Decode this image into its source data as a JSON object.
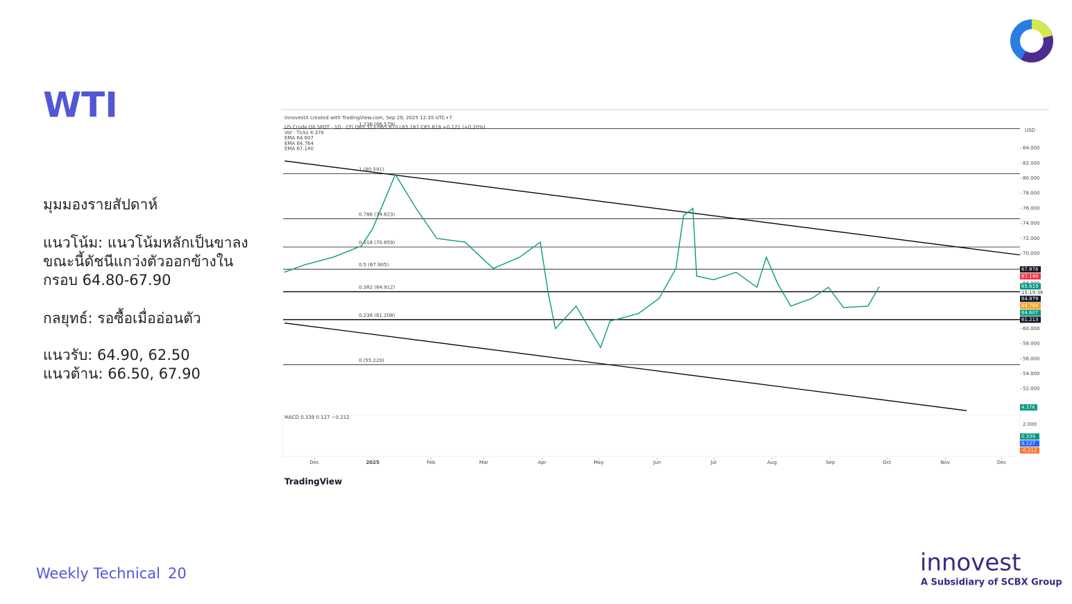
{
  "slide": {
    "title": "WTI",
    "lines": [
      "มุมมองรายสัปดาห์",
      "แนวโน้ม: แนวโน้มหลักเป็นขาลง",
      "ขณะนี้ดัชนีแกว่งตัวออกข้างใน",
      "กรอบ 64.80-67.90",
      "กลยุทธ์: รอซื้อเมื่ออ่อนตัว",
      "แนวรับ: 64.90, 62.50",
      "แนวต้าน: 66.50, 67.90"
    ],
    "footer": "Weekly Technical",
    "page": "20",
    "brand": "innovest",
    "brand_sub": "A Subsidiary of SCBX Group"
  },
  "chart_data": {
    "type": "line",
    "header": [
      "InnovestX created with TradingView.com, Sep 29, 2025 12:35 UTC+7",
      "US Crude Oil SPOT · 1D · CFI  O65.313 H65.670 L65.167 C65.619 +0.121 (+0.20%)",
      "Vol · Ticks  4.37K",
      "EMA  64.607",
      "EMA  64.764",
      "EMA  67.140"
    ],
    "currency": "USD",
    "macd_label": "MACD  0.339  0.127  −0.212",
    "macd_tick": "2.000",
    "macd_values": [
      "0.339",
      "0.127",
      "-0.212"
    ],
    "vol_value": "4.37K",
    "source": "TradingView",
    "time_label": "15:19:36",
    "x": [
      -16,
      -5,
      10,
      25,
      31,
      43,
      54,
      65,
      80,
      95,
      109,
      120,
      124,
      128,
      139,
      152,
      157,
      172,
      183,
      192,
      196,
      201,
      203,
      212,
      224,
      235,
      240,
      246,
      253,
      264,
      273,
      281,
      294,
      300
    ],
    "values": [
      67.5,
      68.5,
      69.5,
      71,
      73.3,
      80.5,
      76,
      72,
      71.5,
      68,
      69.5,
      71.5,
      65,
      60,
      63,
      57.5,
      61,
      62,
      64,
      68,
      75,
      76,
      67,
      66.5,
      67.5,
      65.5,
      69.5,
      66,
      63,
      64,
      65.5,
      62.8,
      63,
      65.6
    ],
    "color": "#089981",
    "xlim": [
      -16.6,
      374.7
    ],
    "ylim": [
      49.3,
      87.1
    ],
    "xticks": [
      {
        "value": 0,
        "label": "Dec"
      },
      {
        "value": 31,
        "label": "2025"
      },
      {
        "value": 62,
        "label": "Feb"
      },
      {
        "value": 90,
        "label": "Mar"
      },
      {
        "value": 121,
        "label": "Apr"
      },
      {
        "value": 151,
        "label": "May"
      },
      {
        "value": 182,
        "label": "Jun"
      },
      {
        "value": 212,
        "label": "Jul"
      },
      {
        "value": 243,
        "label": "Aug"
      },
      {
        "value": 274,
        "label": "Sep"
      },
      {
        "value": 304,
        "label": "Oct"
      },
      {
        "value": 335,
        "label": "Nov"
      },
      {
        "value": 365,
        "label": "Dec"
      }
    ],
    "yticks": [
      {
        "value": 84,
        "label": "84.000"
      },
      {
        "value": 82,
        "label": "82.000"
      },
      {
        "value": 80,
        "label": "80.000"
      },
      {
        "value": 78,
        "label": "78.000"
      },
      {
        "value": 76,
        "label": "76.000"
      },
      {
        "value": 74,
        "label": "74.000"
      },
      {
        "value": 72,
        "label": "72.000"
      },
      {
        "value": 70,
        "label": "70.000"
      },
      {
        "value": 68,
        "label": "68.000"
      },
      {
        "value": 66,
        "label": "66.000"
      },
      {
        "value": 64,
        "label": "64.000"
      },
      {
        "value": 62,
        "label": "62.000"
      },
      {
        "value": 60,
        "label": "60.000"
      },
      {
        "value": 58,
        "label": "58.000"
      },
      {
        "value": 56,
        "label": "56.000"
      },
      {
        "value": 54,
        "label": "54.000"
      },
      {
        "value": 52,
        "label": "52.000"
      }
    ],
    "fib_levels": [
      {
        "value": 86.579,
        "label": "1.236 (86.579)"
      },
      {
        "value": 80.591,
        "label": "1 (80.591)"
      },
      {
        "value": 74.623,
        "label": "0.786 (74.623)"
      },
      {
        "value": 70.859,
        "label": "0.618 (70.859)"
      },
      {
        "value": 67.905,
        "label": "0.5 (67.905)"
      },
      {
        "value": 64.912,
        "label": "0.382 (64.912)"
      },
      {
        "value": 61.208,
        "label": "0.236 (61.208)"
      },
      {
        "value": 55.22,
        "label": "0 (55.220)"
      }
    ],
    "trendlines": [
      {
        "x": [
          -15.8,
          374.7
        ],
        "y": [
          82.3,
          69.8
        ]
      },
      {
        "x": [
          -15.8,
          346.4
        ],
        "y": [
          60.75,
          49.1
        ]
      }
    ],
    "price_labels": [
      {
        "value": 67.876,
        "label": "67.876",
        "color": "#131722"
      },
      {
        "value": 67.14,
        "label": "67.140",
        "color": "#f23645"
      },
      {
        "value": 65.619,
        "label": "65.619",
        "color": "#089981"
      },
      {
        "value": 64.879,
        "label": "64.879",
        "color": "#131722"
      },
      {
        "value": 64.764,
        "label": "64.764",
        "color": "#f7a21b"
      },
      {
        "value": 64.607,
        "label": "64.607",
        "color": "#089981"
      },
      {
        "value": 61.213,
        "label": "61.213",
        "color": "#131722"
      }
    ]
  }
}
